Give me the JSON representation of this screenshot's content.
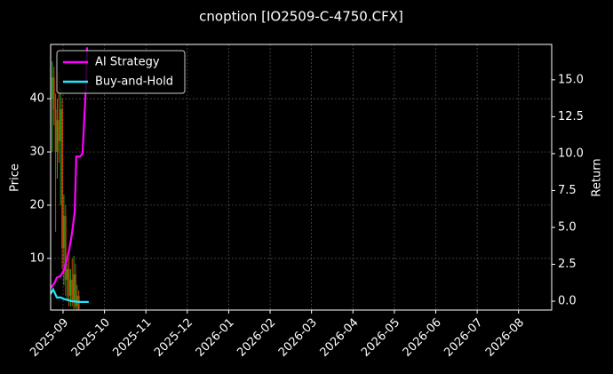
{
  "chart_data": {
    "type": "candlestick",
    "title": "cnoption [IO2509-C-4750.CFX]",
    "ylabel": "Price",
    "y2label": "Return",
    "x": [
      -0.26,
      -0.22,
      -0.18,
      -0.14,
      -0.1,
      -0.06,
      -0.02,
      0.02,
      0.06,
      0.1,
      0.14,
      0.18,
      0.22,
      0.26,
      0.3,
      0.34,
      0.38
    ],
    "open": [
      40,
      44,
      38,
      30,
      36,
      32,
      38,
      12,
      18,
      6,
      8,
      3,
      6,
      2,
      7,
      1,
      3
    ],
    "high": [
      47,
      46,
      41,
      40,
      45,
      42,
      40,
      22,
      20,
      9,
      10,
      8,
      10,
      10.5,
      9,
      5,
      4
    ],
    "low": [
      30,
      35,
      15,
      25,
      28,
      20,
      8,
      5,
      3,
      2,
      1,
      1,
      1,
      0.5,
      0.5,
      0.4,
      0.3
    ],
    "close": [
      44,
      38,
      30,
      36,
      32,
      38,
      12,
      18,
      6,
      8,
      3,
      6,
      2,
      7,
      1,
      3,
      0.5
    ],
    "up_color": "#22aa22",
    "down_color": "#cc4400",
    "series": [
      {
        "name": "AI Strategy",
        "color": "#ff00ff",
        "axis": "y2",
        "x": [
          -0.3,
          -0.21,
          -0.15,
          -0.06,
          0.02,
          0.09,
          0.15,
          0.21,
          0.28,
          0.32,
          0.41,
          0.47,
          0.56,
          0.58
        ],
        "values": [
          0.9,
          1.2,
          1.6,
          1.7,
          2.1,
          2.8,
          3.5,
          4.5,
          6.0,
          9.8,
          9.8,
          10.0,
          15.0,
          17.2
        ]
      },
      {
        "name": "Buy-and-Hold",
        "color": "#22e5ff",
        "axis": "y2",
        "x": [
          -0.3,
          -0.24,
          -0.15,
          -0.06,
          0.02,
          0.09,
          0.15,
          0.21,
          0.28,
          0.41,
          0.62
        ],
        "values": [
          0.5,
          0.8,
          0.25,
          0.25,
          0.15,
          0.1,
          0.05,
          0.0,
          -0.02,
          -0.05,
          -0.05
        ]
      }
    ],
    "xlim": [
      -0.3,
      11.8
    ],
    "xticks": [
      {
        "value": 0,
        "label": "2025-09"
      },
      {
        "value": 1,
        "label": "2025-10"
      },
      {
        "value": 2,
        "label": "2025-11"
      },
      {
        "value": 3,
        "label": "2025-12"
      },
      {
        "value": 4,
        "label": "2026-01"
      },
      {
        "value": 5,
        "label": "2026-02"
      },
      {
        "value": 6,
        "label": "2026-03"
      },
      {
        "value": 7,
        "label": "2026-04"
      },
      {
        "value": 8,
        "label": "2026-05"
      },
      {
        "value": 9,
        "label": "2026-06"
      },
      {
        "value": 10,
        "label": "2026-07"
      },
      {
        "value": 11,
        "label": "2026-08"
      }
    ],
    "ylim": [
      0.3,
      50.2
    ],
    "yticks": [
      10,
      20,
      30,
      40
    ],
    "y2lim": [
      -0.6,
      17.4
    ],
    "y2ticks": [
      {
        "value": 0,
        "label": "0.0"
      },
      2.5,
      {
        "value": 5,
        "label": "5.0"
      },
      7.5,
      {
        "value": 10,
        "label": "10.0"
      },
      12.5,
      {
        "value": 15,
        "label": "15.0"
      }
    ],
    "grid": true,
    "legend": "upper left"
  }
}
